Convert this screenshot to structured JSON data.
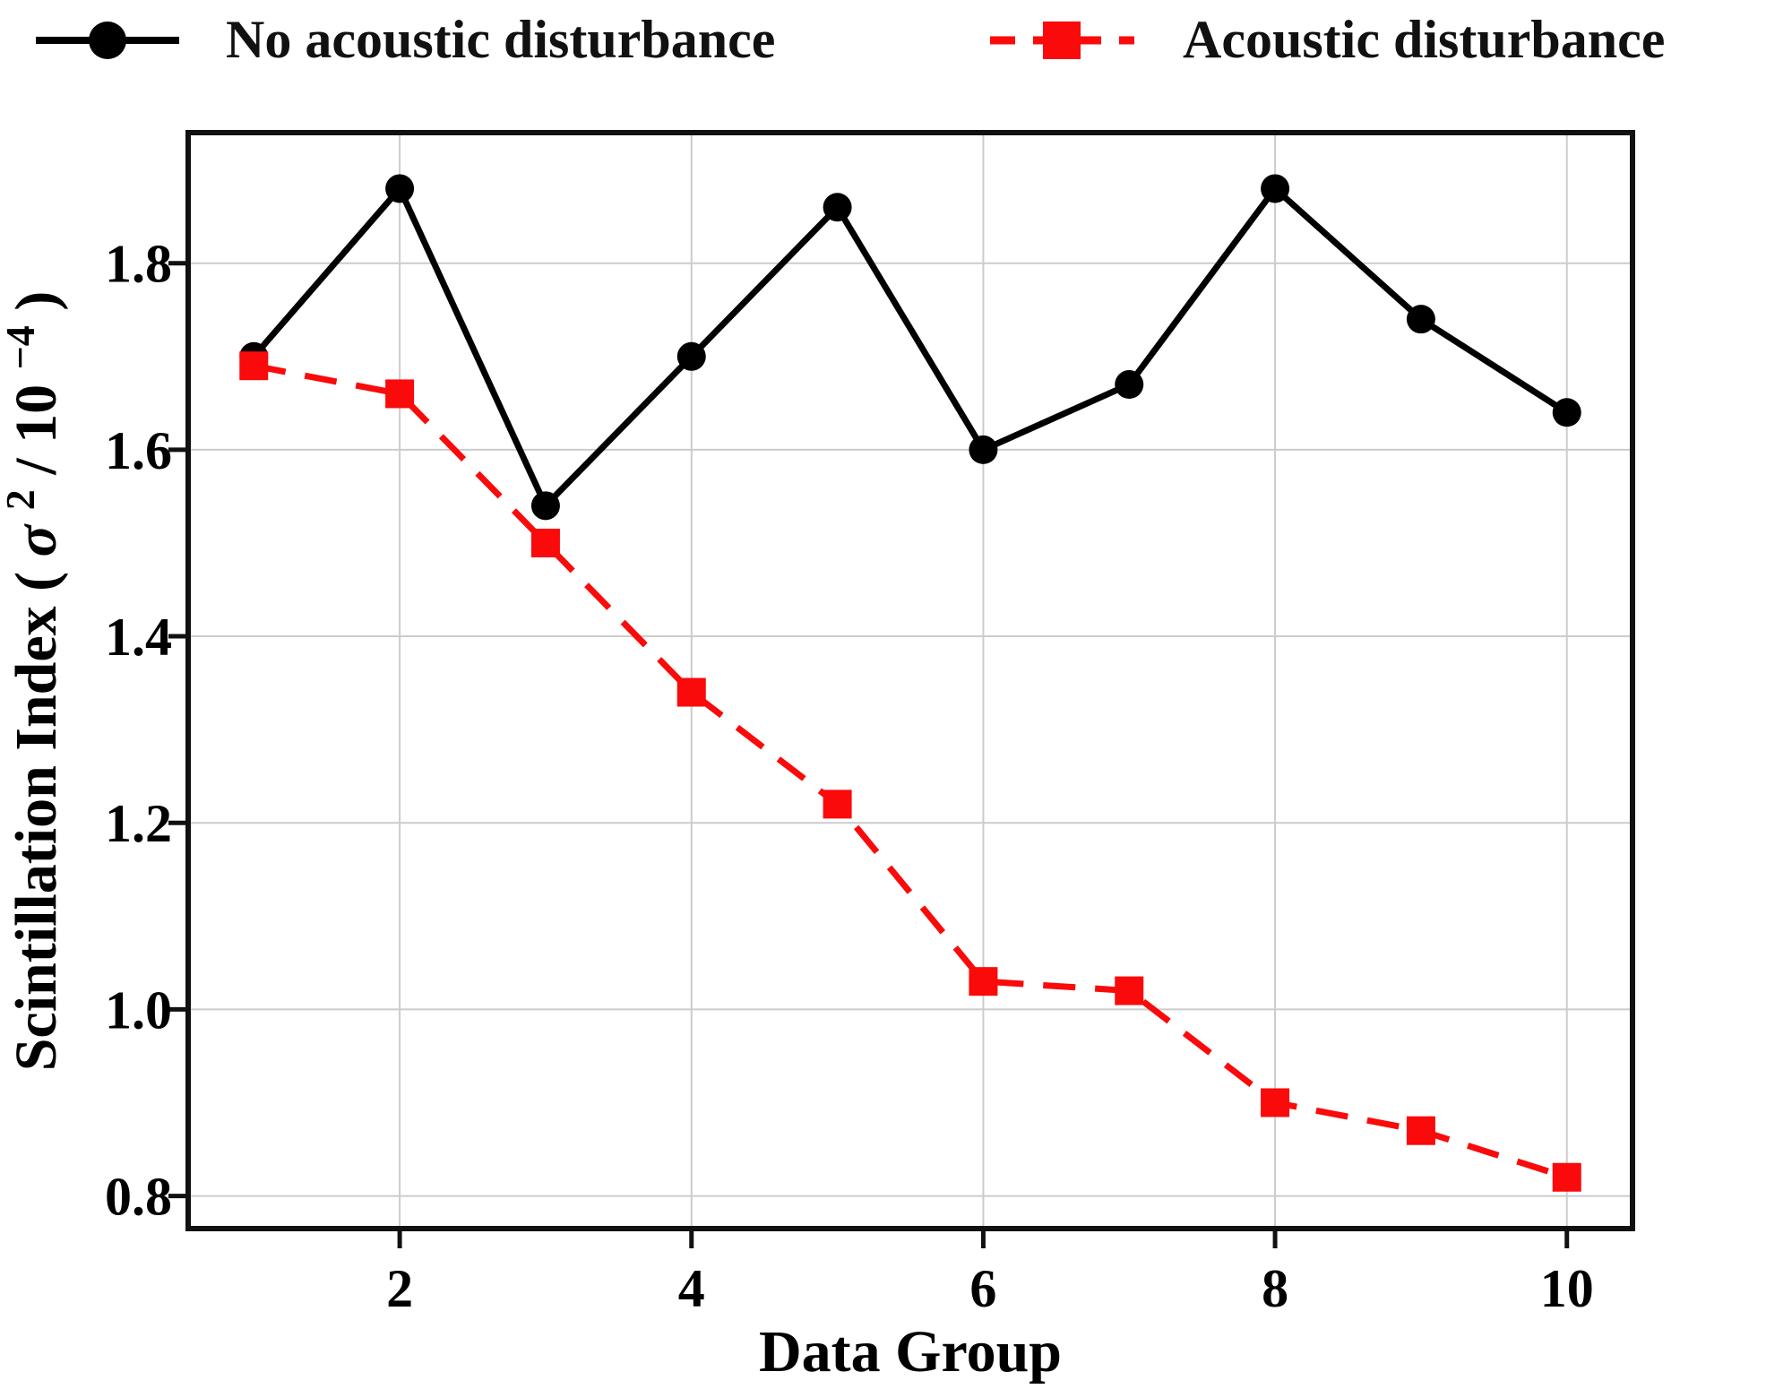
{
  "figure": {
    "background": "#ffffff",
    "legend": [
      {
        "label": "No acoustic disturbance",
        "color": "#000000",
        "marker": "circle",
        "line_style": "solid"
      },
      {
        "label": "Acoustic disturbance",
        "color": "#fa0a0a",
        "marker": "square",
        "line_style": "dashed"
      }
    ]
  },
  "chart_data": {
    "type": "line",
    "x": [
      1,
      2,
      3,
      4,
      5,
      6,
      7,
      8,
      9,
      10
    ],
    "series": [
      {
        "name": "No acoustic disturbance",
        "color": "#000000",
        "marker": "circle",
        "line_style": "solid",
        "values": [
          1.7,
          1.88,
          1.54,
          1.7,
          1.86,
          1.6,
          1.67,
          1.88,
          1.74,
          1.64
        ]
      },
      {
        "name": "Acoustic disturbance",
        "color": "#fa0a0a",
        "marker": "square",
        "line_style": "dashed",
        "values": [
          1.69,
          1.66,
          1.5,
          1.34,
          1.22,
          1.03,
          1.02,
          0.9,
          0.87,
          0.82
        ]
      }
    ],
    "title": "",
    "xlabel": "Data Group",
    "ylabel": "Scintillation Index (σ² / 10⁻⁴)",
    "ylabel_parts": {
      "prefix": "Scintillation Index (",
      "sigma": "σ",
      "sigma_sup": "2",
      "divider": " / 10",
      "exp_sup": "−4",
      "suffix": ")"
    },
    "xlim": [
      0.55,
      10.45
    ],
    "ylim": [
      0.765,
      1.94
    ],
    "xticks": [
      2,
      4,
      6,
      8,
      10
    ],
    "yticks": [
      0.8,
      1.0,
      1.2,
      1.4,
      1.6,
      1.8
    ],
    "grid": true,
    "grid_color": "#cccccc",
    "spine_color": "#111111",
    "legend_position": "top-outside"
  }
}
